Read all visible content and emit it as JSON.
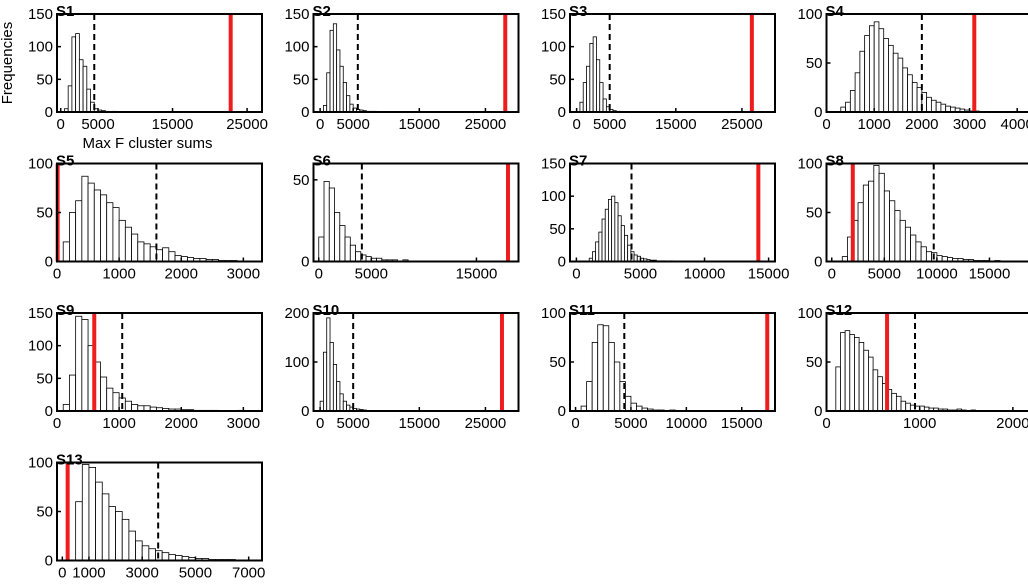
{
  "chart_data": [
    {
      "type": "histogram",
      "title": "S1",
      "ylabel": "Frequencies",
      "xlabel": "Max F cluster sums",
      "xlim": [
        -500,
        27000
      ],
      "xticks": [
        0,
        5000,
        15000,
        25000
      ],
      "ylim": [
        0,
        150
      ],
      "yticks": [
        0,
        50,
        100,
        150
      ],
      "bins": [
        500,
        1000,
        1500,
        2000,
        2500,
        3000,
        3500,
        4000,
        4500,
        5000,
        5500,
        6000,
        6500,
        7000,
        7500
      ],
      "counts": [
        5,
        40,
        115,
        120,
        80,
        70,
        35,
        15,
        5,
        3,
        2,
        1,
        0,
        1
      ],
      "vlines": [
        {
          "value": 4500,
          "color": "#000000",
          "style": "dashed"
        },
        {
          "value": 22800,
          "color": "#ee1c1c",
          "style": "solid"
        }
      ]
    },
    {
      "type": "histogram",
      "title": "S2",
      "xlim": [
        -1000,
        30000
      ],
      "xticks": [
        0,
        5000,
        15000,
        25000
      ],
      "ylim": [
        0,
        150
      ],
      "yticks": [
        0,
        50,
        100,
        150
      ],
      "bins": [
        500,
        1000,
        1500,
        2000,
        2500,
        3000,
        3500,
        4000,
        4500,
        5000,
        5500,
        6000,
        6500,
        7000,
        7500,
        8000,
        8500
      ],
      "counts": [
        10,
        60,
        125,
        135,
        95,
        70,
        45,
        25,
        12,
        6,
        4,
        3,
        2,
        1,
        1,
        1
      ],
      "vlines": [
        {
          "value": 5700,
          "color": "#000000",
          "style": "dashed"
        },
        {
          "value": 28000,
          "color": "#ee1c1c",
          "style": "solid"
        }
      ]
    },
    {
      "type": "histogram",
      "title": "S3",
      "xlim": [
        -1000,
        30000
      ],
      "xticks": [
        0,
        5000,
        15000,
        25000
      ],
      "ylim": [
        0,
        150
      ],
      "yticks": [
        0,
        50,
        100,
        150
      ],
      "bins": [
        500,
        1000,
        1500,
        2000,
        2500,
        3000,
        3500,
        4000,
        4500,
        5000,
        5500,
        6000,
        6500,
        7000,
        7500
      ],
      "counts": [
        15,
        45,
        70,
        105,
        115,
        80,
        45,
        20,
        8,
        4,
        2,
        1,
        1,
        0
      ],
      "vlines": [
        {
          "value": 5000,
          "color": "#000000",
          "style": "dashed"
        },
        {
          "value": 26500,
          "color": "#ee1c1c",
          "style": "solid"
        }
      ]
    },
    {
      "type": "histogram",
      "title": "S4",
      "xlim": [
        0,
        4300
      ],
      "xticks": [
        0,
        1000,
        2000,
        3000,
        4000
      ],
      "ylim": [
        0,
        100
      ],
      "yticks": [
        0,
        50,
        100
      ],
      "bins": [
        300,
        400,
        500,
        600,
        700,
        800,
        900,
        1000,
        1100,
        1200,
        1300,
        1400,
        1500,
        1600,
        1700,
        1800,
        1900,
        2000,
        2100,
        2200,
        2300,
        2400,
        2500,
        2600,
        2700,
        2800,
        2900,
        3000,
        3100,
        3200,
        3300
      ],
      "counts": [
        5,
        10,
        22,
        40,
        62,
        78,
        88,
        92,
        85,
        75,
        68,
        60,
        55,
        45,
        38,
        30,
        25,
        20,
        15,
        12,
        10,
        8,
        6,
        5,
        4,
        3,
        2,
        1,
        1,
        0
      ],
      "vlines": [
        {
          "value": 2000,
          "color": "#000000",
          "style": "dashed"
        },
        {
          "value": 3100,
          "color": "#ee1c1c",
          "style": "solid"
        }
      ]
    },
    {
      "type": "histogram",
      "title": "S5",
      "xlim": [
        0,
        3300
      ],
      "xticks": [
        0,
        1000,
        2000,
        3000
      ],
      "ylim": [
        0,
        100
      ],
      "yticks": [
        0,
        50,
        100
      ],
      "bins": [
        100,
        200,
        300,
        400,
        500,
        600,
        700,
        800,
        900,
        1000,
        1100,
        1200,
        1300,
        1400,
        1500,
        1600,
        1700,
        1800,
        1900,
        2000,
        2100,
        2200,
        2300,
        2400,
        2500,
        2600,
        2700,
        2800,
        2900
      ],
      "counts": [
        20,
        50,
        62,
        87,
        80,
        73,
        68,
        60,
        55,
        42,
        35,
        28,
        20,
        18,
        15,
        12,
        14,
        10,
        6,
        5,
        4,
        3,
        3,
        2,
        2,
        1,
        1,
        1
      ],
      "vlines": [
        {
          "value": 1600,
          "color": "#000000",
          "style": "dashed"
        },
        {
          "value": 10,
          "color": "#ee1c1c",
          "style": "solid"
        }
      ]
    },
    {
      "type": "histogram",
      "title": "S6",
      "xlim": [
        -500,
        19000
      ],
      "xticks": [
        0,
        5000,
        15000
      ],
      "ylim": [
        0,
        60
      ],
      "yticks": [
        0,
        50
      ],
      "bins": [
        0,
        500,
        1000,
        1500,
        2000,
        2500,
        3000,
        3500,
        4000,
        4500,
        5000,
        5500,
        6000,
        6500,
        7000,
        7500,
        8000,
        8500,
        9000
      ],
      "counts": [
        15,
        49,
        45,
        30,
        22,
        15,
        10,
        6,
        4,
        3,
        2,
        2,
        1,
        1,
        1,
        0,
        1,
        0
      ],
      "vlines": [
        {
          "value": 4100,
          "color": "#000000",
          "style": "dashed"
        },
        {
          "value": 18000,
          "color": "#ee1c1c",
          "style": "solid"
        }
      ]
    },
    {
      "type": "histogram",
      "title": "S7",
      "xlim": [
        -500,
        15500
      ],
      "xticks": [
        0,
        5000,
        10000,
        15000
      ],
      "ylim": [
        0,
        150
      ],
      "yticks": [
        0,
        50,
        100,
        150
      ],
      "bins": [
        1000,
        1250,
        1500,
        1750,
        2000,
        2250,
        2500,
        2750,
        3000,
        3250,
        3500,
        3750,
        4000,
        4250,
        4500,
        4750,
        5000,
        5250,
        5500,
        5750,
        6000,
        6250,
        6500,
        6750,
        7000,
        7250,
        7500,
        7750
      ],
      "counts": [
        5,
        15,
        30,
        45,
        65,
        80,
        95,
        100,
        90,
        70,
        55,
        40,
        25,
        15,
        10,
        8,
        5,
        4,
        3,
        2,
        2,
        1,
        1,
        1,
        0,
        1,
        0
      ],
      "vlines": [
        {
          "value": 4300,
          "color": "#000000",
          "style": "dashed"
        },
        {
          "value": 14200,
          "color": "#ee1c1c",
          "style": "solid"
        }
      ]
    },
    {
      "type": "histogram",
      "title": "S8",
      "xlim": [
        -500,
        19000
      ],
      "xticks": [
        0,
        5000,
        10000,
        15000
      ],
      "ylim": [
        0,
        100
      ],
      "yticks": [
        0,
        50,
        100
      ],
      "bins": [
        1000,
        1500,
        2000,
        2500,
        3000,
        3500,
        4000,
        4500,
        5000,
        5500,
        6000,
        6500,
        7000,
        7500,
        8000,
        8500,
        9000,
        9500,
        10000,
        10500,
        11000,
        11500,
        12000,
        12500,
        13000,
        13500,
        14000,
        14500,
        15000,
        15500,
        16000
      ],
      "counts": [
        5,
        25,
        42,
        60,
        78,
        82,
        98,
        90,
        72,
        62,
        52,
        42,
        35,
        27,
        20,
        15,
        10,
        9,
        6,
        5,
        4,
        3,
        3,
        2,
        2,
        1,
        1,
        1,
        0,
        1
      ],
      "vlines": [
        {
          "value": 9700,
          "color": "#000000",
          "style": "dashed"
        },
        {
          "value": 2000,
          "color": "#ee1c1c",
          "style": "solid"
        }
      ]
    },
    {
      "type": "histogram",
      "title": "S9",
      "xlim": [
        0,
        3300
      ],
      "xticks": [
        0,
        1000,
        2000,
        3000
      ],
      "ylim": [
        0,
        150
      ],
      "yticks": [
        0,
        50,
        100,
        150
      ],
      "bins": [
        100,
        200,
        300,
        400,
        500,
        600,
        700,
        800,
        900,
        1000,
        1100,
        1200,
        1300,
        1400,
        1500,
        1600,
        1700,
        1800,
        1900,
        2000,
        2100,
        2200,
        2300,
        2400,
        2500,
        2600,
        2700,
        2800,
        2900,
        3000,
        3100
      ],
      "counts": [
        10,
        55,
        145,
        140,
        100,
        75,
        52,
        35,
        28,
        20,
        15,
        10,
        8,
        8,
        6,
        5,
        4,
        3,
        3,
        2,
        2,
        1,
        1,
        1,
        1,
        0,
        0,
        0,
        1,
        0
      ],
      "vlines": [
        {
          "value": 1050,
          "color": "#000000",
          "style": "dashed"
        },
        {
          "value": 600,
          "color": "#ee1c1c",
          "style": "solid"
        }
      ]
    },
    {
      "type": "histogram",
      "title": "S10",
      "xlim": [
        -1000,
        30000
      ],
      "xticks": [
        0,
        5000,
        15000,
        25000
      ],
      "ylim": [
        0,
        200
      ],
      "yticks": [
        0,
        100,
        200
      ],
      "bins": [
        0,
        500,
        1000,
        1500,
        2000,
        2500,
        3000,
        3500,
        4000,
        4500,
        5000,
        5500,
        6000,
        6500,
        7000,
        7500,
        8000,
        8500,
        9000
      ],
      "counts": [
        20,
        120,
        190,
        140,
        95,
        60,
        35,
        20,
        12,
        8,
        5,
        4,
        3,
        2,
        1,
        1,
        1,
        0
      ],
      "vlines": [
        {
          "value": 5000,
          "color": "#000000",
          "style": "dashed"
        },
        {
          "value": 27500,
          "color": "#ee1c1c",
          "style": "solid"
        }
      ]
    },
    {
      "type": "histogram",
      "title": "S11",
      "xlim": [
        -500,
        18000
      ],
      "xticks": [
        0,
        5000,
        10000,
        15000
      ],
      "ylim": [
        0,
        100
      ],
      "yticks": [
        0,
        50,
        100
      ],
      "bins": [
        500,
        1000,
        1500,
        2000,
        2500,
        3000,
        3500,
        4000,
        4500,
        5000,
        5500,
        6000,
        6500,
        7000,
        7500,
        8000,
        8500,
        9000
      ],
      "counts": [
        5,
        30,
        70,
        88,
        87,
        70,
        50,
        30,
        15,
        8,
        5,
        3,
        2,
        1,
        1,
        0,
        1
      ],
      "vlines": [
        {
          "value": 4400,
          "color": "#000000",
          "style": "dashed"
        },
        {
          "value": 17300,
          "color": "#ee1c1c",
          "style": "solid"
        }
      ]
    },
    {
      "type": "histogram",
      "title": "S12",
      "xlim": [
        0,
        2200
      ],
      "xticks": [
        0,
        1000,
        2000
      ],
      "ylim": [
        0,
        100
      ],
      "yticks": [
        0,
        50,
        100
      ],
      "bins": [
        100,
        150,
        200,
        250,
        300,
        350,
        400,
        450,
        500,
        550,
        600,
        650,
        700,
        750,
        800,
        850,
        900,
        950,
        1000,
        1050,
        1100,
        1150,
        1200,
        1250,
        1300,
        1350,
        1400,
        1450,
        1500,
        1550,
        1600
      ],
      "counts": [
        45,
        80,
        82,
        78,
        75,
        70,
        62,
        55,
        42,
        35,
        28,
        22,
        18,
        15,
        10,
        8,
        6,
        5,
        5,
        4,
        3,
        3,
        2,
        2,
        1,
        1,
        2,
        1,
        0,
        1
      ],
      "vlines": [
        {
          "value": 950,
          "color": "#000000",
          "style": "dashed"
        },
        {
          "value": 650,
          "color": "#ee1c1c",
          "style": "solid"
        }
      ]
    },
    {
      "type": "histogram",
      "title": "S13",
      "xlim": [
        -200,
        7500
      ],
      "xticks": [
        0,
        1000,
        3000,
        5000,
        7000
      ],
      "ylim": [
        0,
        100
      ],
      "yticks": [
        0,
        50,
        100
      ],
      "bins": [
        500,
        750,
        1000,
        1250,
        1500,
        1750,
        2000,
        2250,
        2500,
        2750,
        3000,
        3250,
        3500,
        3750,
        4000,
        4250,
        4500,
        4750,
        5000,
        5250,
        5500,
        5750,
        6000,
        6250,
        6500
      ],
      "counts": [
        60,
        98,
        95,
        80,
        68,
        55,
        50,
        42,
        30,
        20,
        15,
        12,
        10,
        8,
        6,
        5,
        4,
        3,
        2,
        2,
        1,
        1,
        1,
        1
      ],
      "vlines": [
        {
          "value": 3600,
          "color": "#000000",
          "style": "dashed"
        },
        {
          "value": 200,
          "color": "#ee1c1c",
          "style": "solid"
        }
      ]
    }
  ]
}
